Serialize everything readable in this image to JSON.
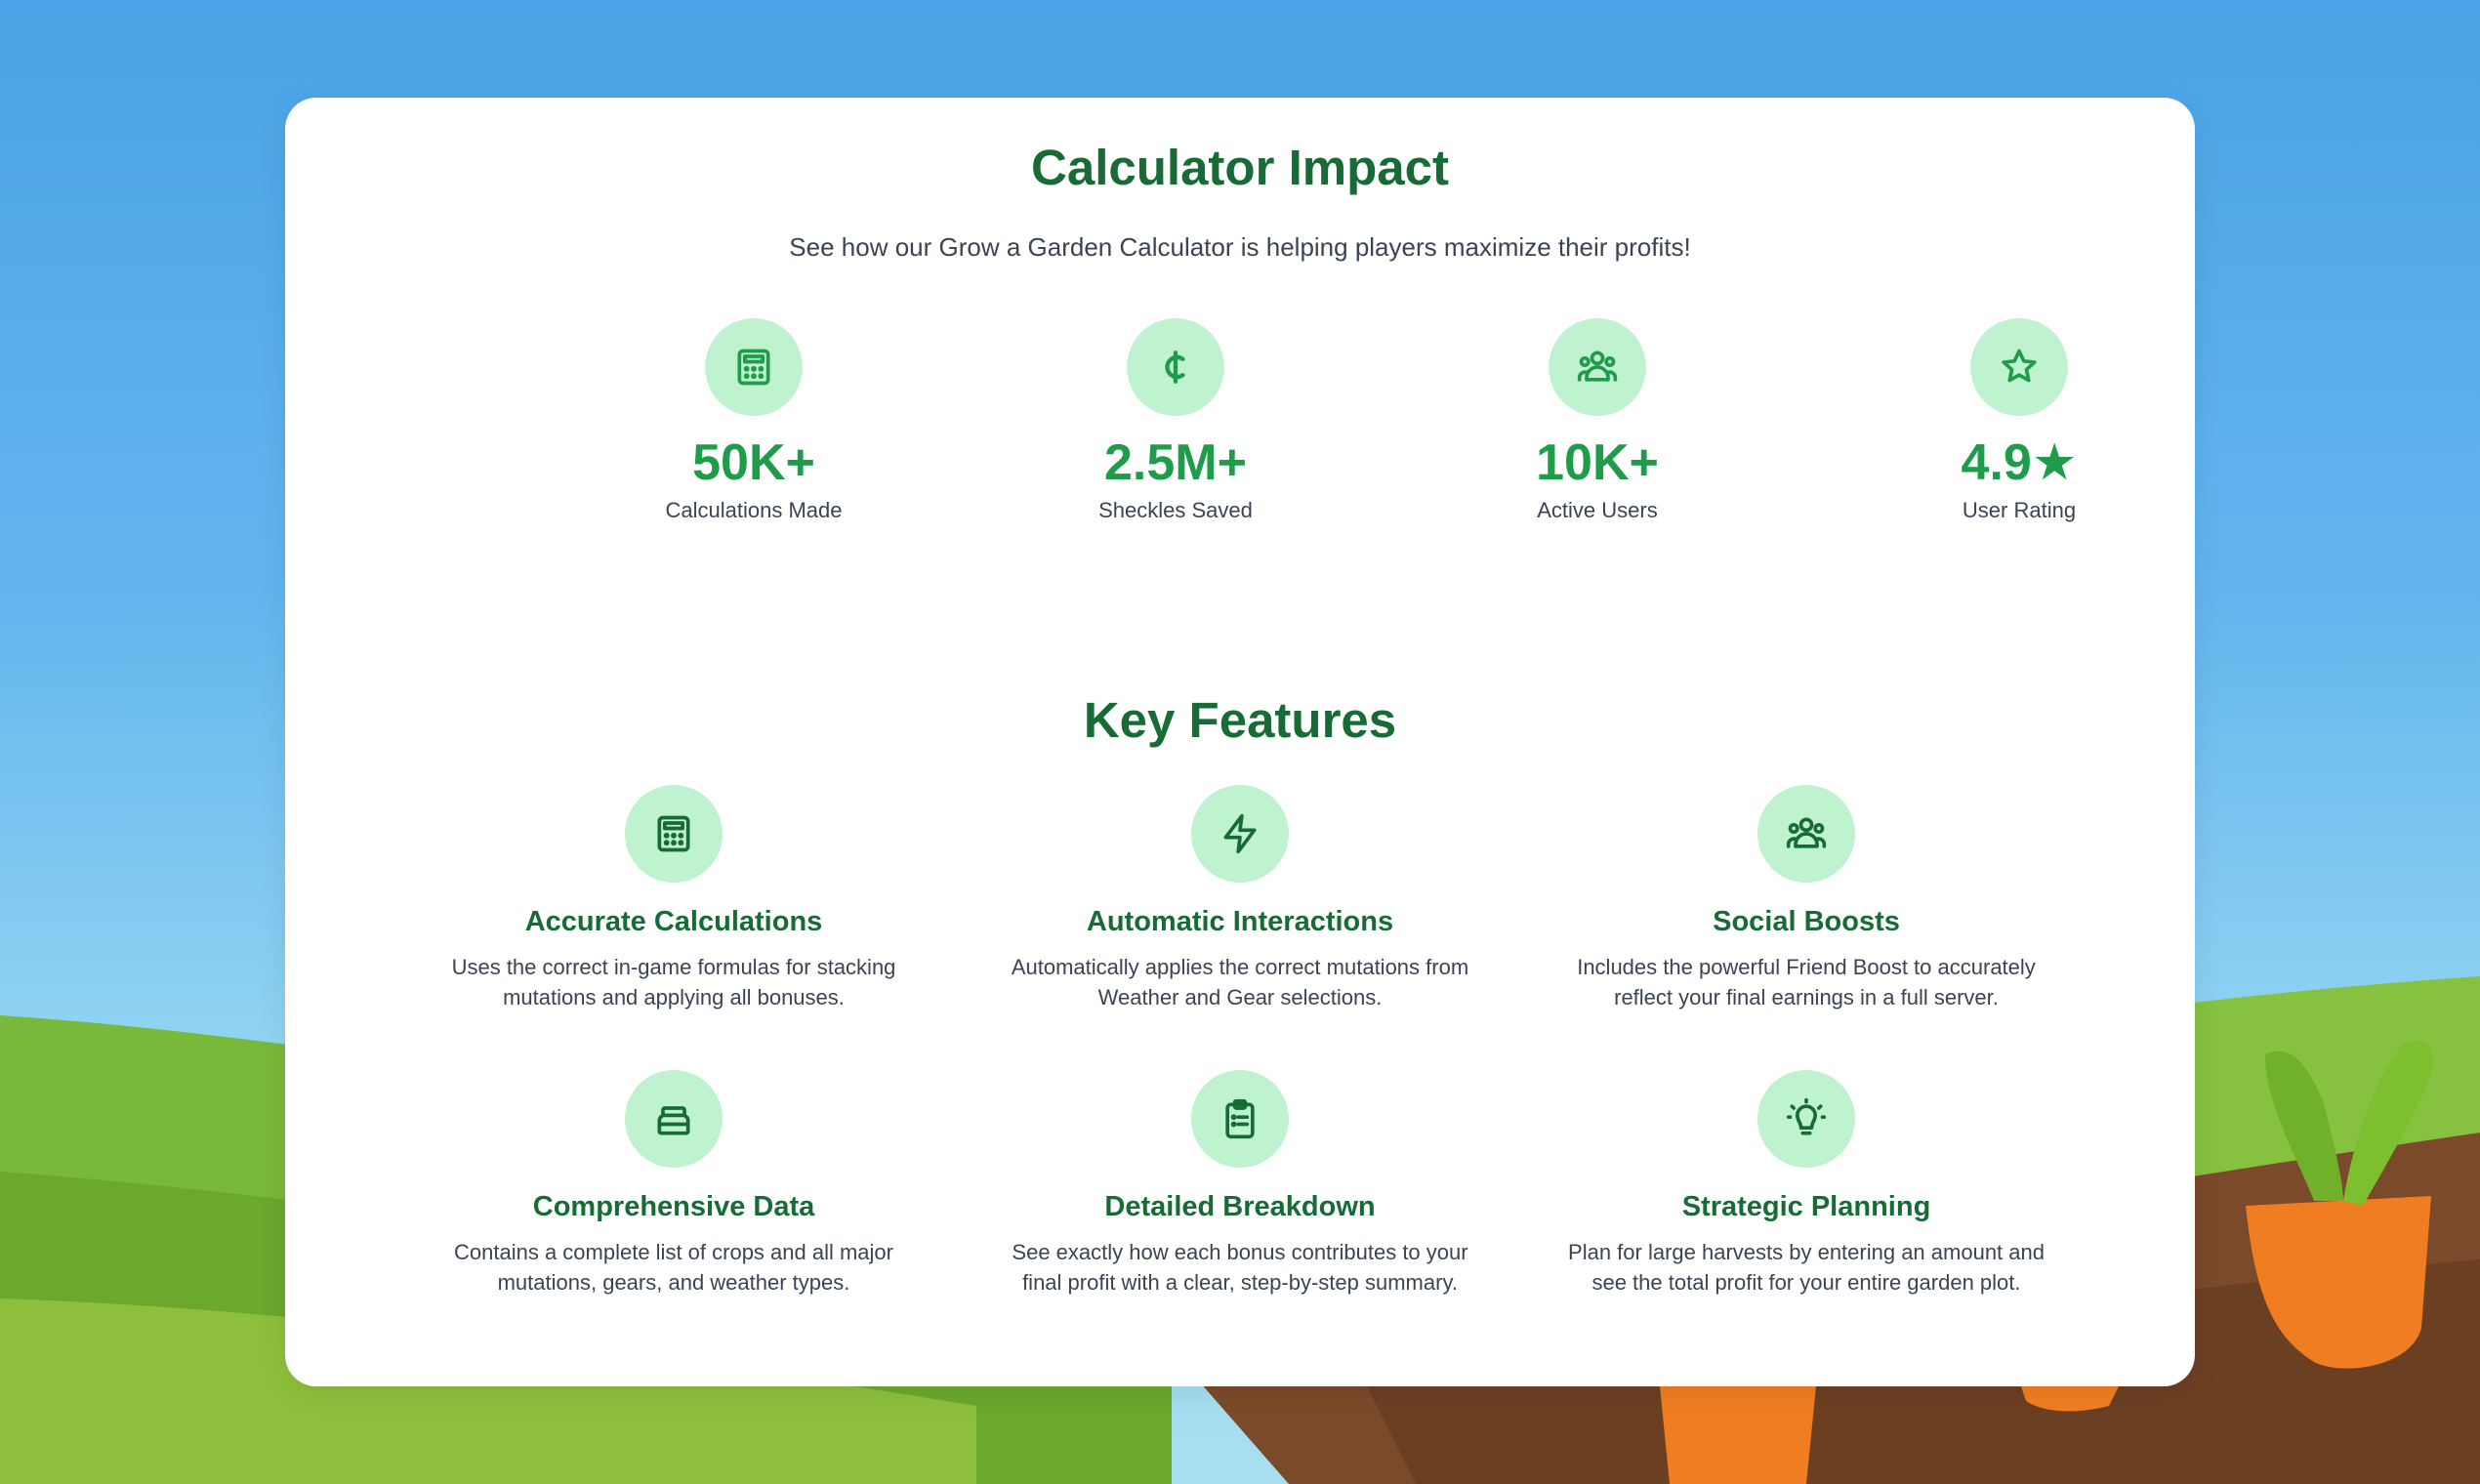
{
  "colors": {
    "accent": "#1e9c4a",
    "heading": "#176b35",
    "icon_bg": "#bff2cf",
    "text": "#3a4454"
  },
  "impact": {
    "title": "Calculator Impact",
    "subtitle": "See how our Grow a Garden Calculator is helping players maximize their profits!",
    "stats": [
      {
        "icon": "calculator-icon",
        "value": "50K+",
        "label": "Calculations Made"
      },
      {
        "icon": "cent-icon",
        "value": "2.5M+",
        "label": "Sheckles Saved"
      },
      {
        "icon": "users-icon",
        "value": "10K+",
        "label": "Active Users"
      },
      {
        "icon": "star-icon",
        "value": "4.9★",
        "label": "User Rating"
      }
    ]
  },
  "features": {
    "title": "Key Features",
    "items": [
      {
        "icon": "calculator-icon",
        "title": "Accurate Calculations",
        "desc": "Uses the correct in-game formulas for stacking mutations and applying all bonuses."
      },
      {
        "icon": "lightning-icon",
        "title": "Automatic Interactions",
        "desc": "Automatically applies the correct mutations from Weather and Gear selections."
      },
      {
        "icon": "users-icon",
        "title": "Social Boosts",
        "desc": "Includes the powerful Friend Boost to accurately reflect your final earnings in a full server."
      },
      {
        "icon": "archive-icon",
        "title": "Comprehensive Data",
        "desc": "Contains a complete list of crops and all major mutations, gears, and weather types."
      },
      {
        "icon": "clipboard-icon",
        "title": "Detailed Breakdown",
        "desc": "See exactly how each bonus contributes to your final profit with a clear, step-by-step summary."
      },
      {
        "icon": "lightbulb-icon",
        "title": "Strategic Planning",
        "desc": "Plan for large harvests by entering an amount and see the total profit for your entire garden plot."
      }
    ]
  }
}
